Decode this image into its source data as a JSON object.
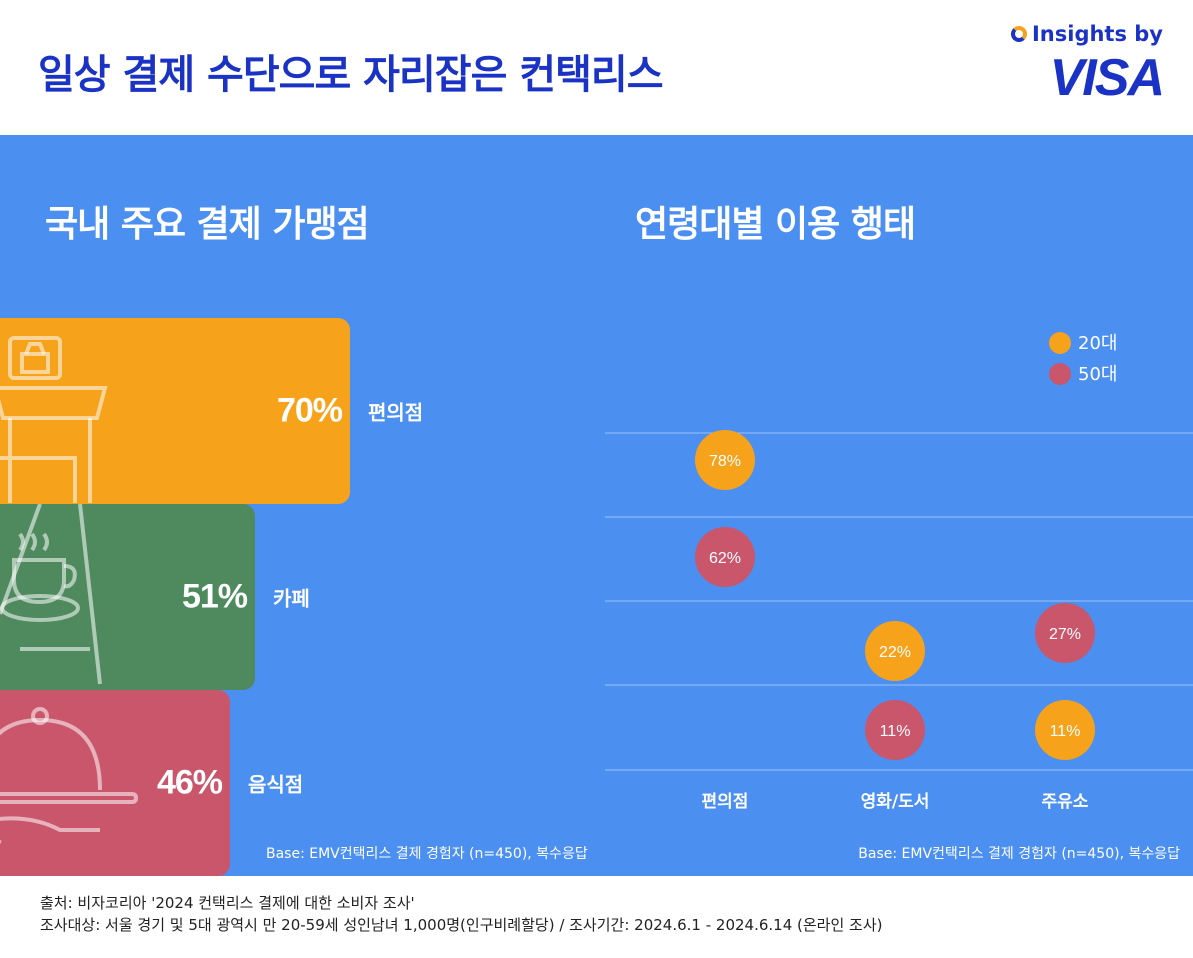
{
  "header": {
    "title": "일상 결제 수단으로 자리잡은 컨택리스",
    "brand_insights": "Insights by",
    "brand_visa": "VISA"
  },
  "left": {
    "title": "국내 주요 결제 가맹점",
    "base_note": "Base: EMV컨택리스 결제 경험자 (n=450), 복수응답"
  },
  "right": {
    "title": "연령대별 이용 행태",
    "base_note": "Base: EMV컨택리스 결제 경험자 (n=450), 복수응답"
  },
  "colors": {
    "panel": "#4b8ff0",
    "orange": "#f7a21b",
    "green": "#4f8a5e",
    "red": "#c9566b",
    "title_blue": "#1a33c4"
  },
  "chart_data": [
    {
      "type": "bar",
      "orientation": "horizontal",
      "categories": [
        "편의점",
        "카페",
        "음식점"
      ],
      "values": [
        70,
        51,
        46
      ],
      "value_labels": [
        "70%",
        "51%",
        "46%"
      ],
      "bar_colors": [
        "#f7a21b",
        "#4f8a5e",
        "#c9566b"
      ],
      "icons": [
        "store-icon",
        "coffee-cup-icon",
        "serving-cloche-icon"
      ],
      "title": "국내 주요 결제 가맹점"
    },
    {
      "type": "scatter",
      "categories": [
        "편의점",
        "영화/도서",
        "주유소"
      ],
      "series": [
        {
          "name": "20대",
          "color": "#f7a21b",
          "values": [
            78,
            22,
            11
          ],
          "labels": [
            "78%",
            "22%",
            "11%"
          ]
        },
        {
          "name": "50대",
          "color": "#c9566b",
          "values": [
            62,
            11,
            27
          ],
          "labels": [
            "62%",
            "11%",
            "27%"
          ]
        }
      ],
      "legend": "top-right",
      "title": "연령대별 이용 행태"
    }
  ],
  "footer": {
    "line1": "출처: 비자코리아 '2024 컨택리스 결제에 대한 소비자 조사'",
    "line2": "조사대상: 서울 경기 및 5대 광역시 만 20-59세 성인남녀 1,000명(인구비례할당)  / 조사기간: 2024.6.1 - 2024.6.14 (온라인 조사)"
  }
}
